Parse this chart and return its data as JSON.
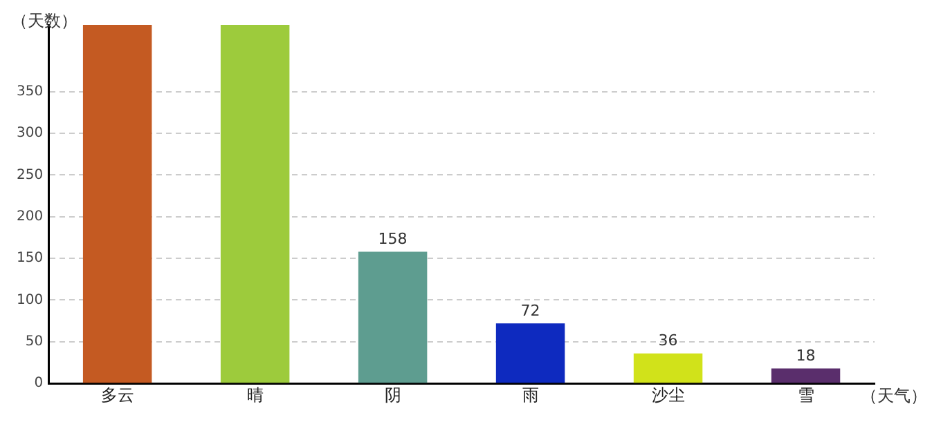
{
  "chart_data": {
    "type": "bar",
    "xlabel": "（天气）",
    "ylabel": "（天数）",
    "categories": [
      "多云",
      "晴",
      "阴",
      "雨",
      "沙尘",
      "雪"
    ],
    "values": [
      430,
      430,
      158,
      72,
      36,
      18
    ],
    "colors": [
      "#c45a22",
      "#9dcb3c",
      "#5e9d90",
      "#0e2abf",
      "#d1e21a",
      "#5a2e6c"
    ],
    "value_labels": [
      null,
      null,
      "158",
      "72",
      "36",
      "18"
    ],
    "ylim": [
      0,
      430
    ],
    "yticks": [
      0,
      50,
      100,
      150,
      200,
      250,
      300,
      350
    ],
    "grid": "y",
    "legend": false
  }
}
